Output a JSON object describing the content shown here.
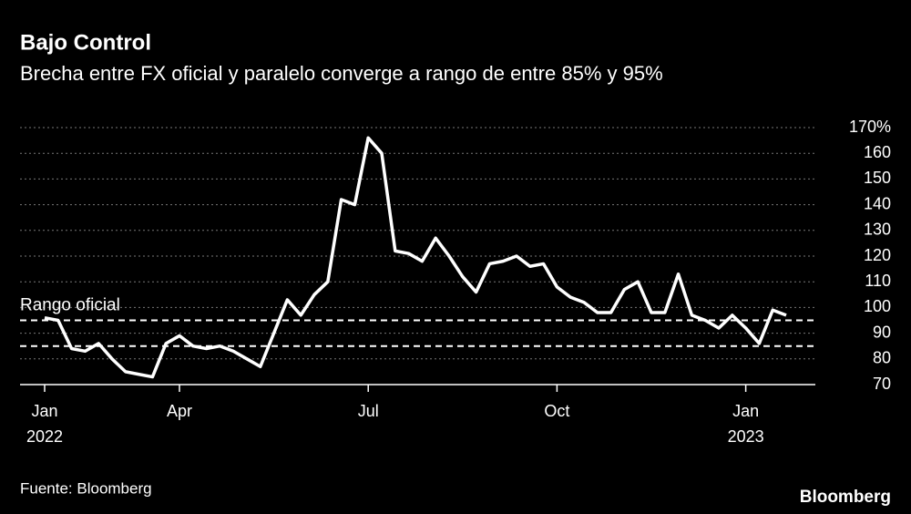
{
  "chart_data": {
    "type": "line",
    "title": "Bajo Control",
    "subtitle": "Brecha entre FX oficial y paralelo converge a rango de entre 85% y 95%",
    "source": "Fuente: Bloomberg",
    "brand": "Bloomberg",
    "annotation": "Rango oficial",
    "reference_lines": [
      95,
      85
    ],
    "categories": [
      [
        "Jan",
        "2022"
      ],
      null,
      null,
      null,
      null,
      null,
      null,
      null,
      null,
      null,
      [
        "Apr"
      ],
      null,
      null,
      null,
      null,
      null,
      null,
      null,
      null,
      null,
      null,
      null,
      null,
      null,
      [
        "Jul"
      ],
      null,
      null,
      null,
      null,
      null,
      null,
      null,
      null,
      null,
      null,
      null,
      null,
      null,
      [
        "Oct"
      ],
      null,
      null,
      null,
      null,
      null,
      null,
      null,
      null,
      null,
      null,
      null,
      null,
      null,
      [
        "Jan",
        "2023"
      ],
      null,
      null,
      null
    ],
    "series": [
      {
        "color": "#ffffff",
        "values": [
          96,
          95,
          84,
          83,
          86,
          80,
          75,
          74,
          73,
          86,
          89,
          85,
          84,
          85,
          83,
          80,
          77,
          90,
          103,
          97,
          105,
          110,
          142,
          140,
          166,
          160,
          122,
          121,
          118,
          127,
          120,
          112,
          106,
          117,
          118,
          120,
          116,
          117,
          108,
          104,
          102,
          98,
          98,
          107,
          110,
          98,
          98,
          113,
          97,
          95,
          92,
          97,
          92,
          86,
          99,
          97
        ]
      }
    ],
    "ylim": [
      70,
      170
    ],
    "yticks": [
      70,
      80,
      90,
      100,
      110,
      120,
      130,
      140,
      150,
      160,
      {
        "value": 170,
        "label": "170%"
      }
    ],
    "grid": true
  }
}
